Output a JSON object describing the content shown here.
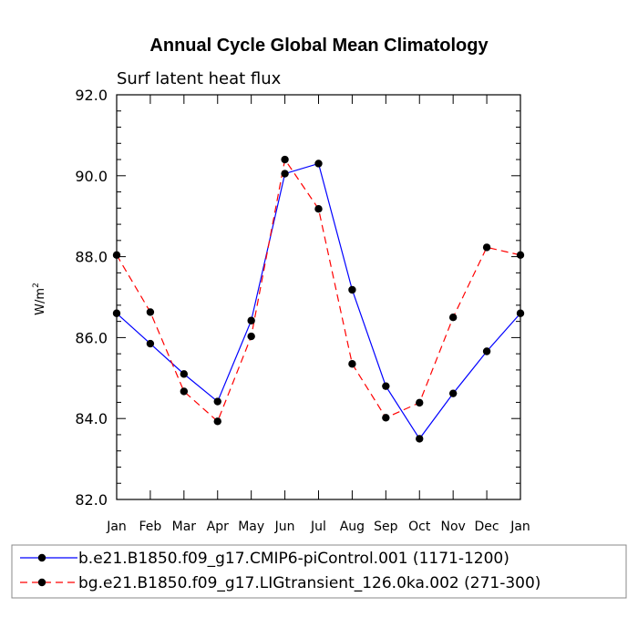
{
  "chart_data": {
    "type": "line",
    "title": "Annual Cycle Global Mean Climatology",
    "subtitle": "Surf latent heat flux",
    "xlabel": "",
    "ylabel": "W/m",
    "ylabel_sup": "2",
    "categories": [
      "Jan",
      "Feb",
      "Mar",
      "Apr",
      "May",
      "Jun",
      "Jul",
      "Aug",
      "Sep",
      "Oct",
      "Nov",
      "Dec",
      "Jan"
    ],
    "ylim": [
      82.0,
      92.0
    ],
    "yticks": [
      "82.0",
      "84.0",
      "86.0",
      "88.0",
      "90.0",
      "92.0"
    ],
    "series": [
      {
        "name": "b.e21.B1850.f09_g17.CMIP6-piControl.001 (1171-1200)",
        "color": "#0000ff",
        "dash": "solid",
        "values": [
          86.6,
          85.85,
          85.1,
          84.42,
          86.42,
          90.05,
          90.3,
          87.18,
          84.8,
          83.5,
          84.62,
          85.66,
          86.6
        ]
      },
      {
        "name": "bg.e21.B1850.f09_g17.LIGtransient_126.0ka.002 (271-300)",
        "color": "#ff0000",
        "dash": "dashed",
        "values": [
          88.04,
          86.63,
          84.67,
          83.93,
          86.03,
          90.4,
          89.18,
          85.35,
          84.02,
          84.39,
          86.5,
          88.23,
          88.04
        ]
      }
    ],
    "legend_position": "bottom"
  }
}
